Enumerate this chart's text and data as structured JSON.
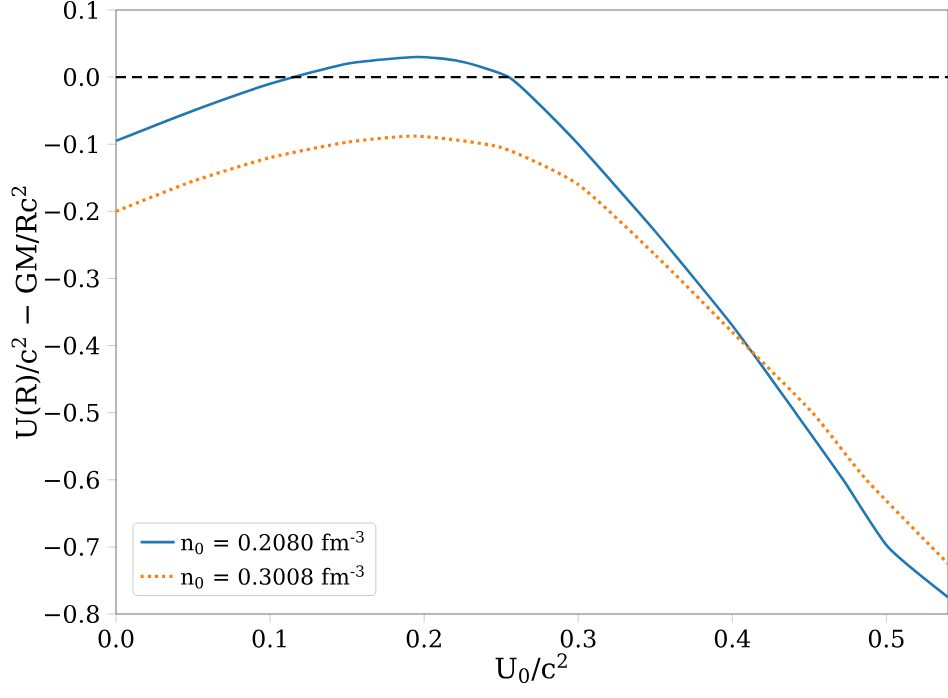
{
  "chart_data": {
    "type": "line",
    "xlabel": "U$_{0}$/c$^{2}$",
    "ylabel": "U(R)/c$^{2}$ − GM/Rc$^{2}$",
    "xlim": [
      0,
      0.54
    ],
    "ylim": [
      -0.8,
      0.1
    ],
    "xticks": [
      {
        "value": 0,
        "label": "0.0"
      },
      0.1,
      0.2,
      0.3,
      0.4,
      0.5
    ],
    "yticks": [
      {
        "value": 0.1,
        "label": "0.1"
      },
      {
        "value": 0,
        "label": "0.0"
      },
      {
        "value": -0.1,
        "label": "−0.1"
      },
      {
        "value": -0.2,
        "label": "−0.2"
      },
      {
        "value": -0.3,
        "label": "−0.3"
      },
      {
        "value": -0.4,
        "label": "−0.4"
      },
      {
        "value": -0.5,
        "label": "−0.5"
      },
      {
        "value": -0.6,
        "label": "−0.6"
      },
      {
        "value": -0.7,
        "label": "−0.7"
      },
      {
        "value": -0.8,
        "label": "−0.8"
      }
    ],
    "x": [
      0,
      0.05,
      0.1,
      0.15,
      0.195,
      0.22,
      0.24,
      0.255,
      0.27,
      0.3,
      0.35,
      0.4,
      0.441,
      0.472,
      0.501,
      0.54
    ],
    "series": [
      {
        "name": "n$_{0}$ = 0.2080 fm$^{-3}$",
        "color": "#1f77b4",
        "line_style": "solid",
        "values": [
          -0.095,
          -0.05,
          -0.01,
          0.02,
          0.03,
          0.025,
          0.013,
          0.0,
          -0.03,
          -0.1,
          -0.23,
          -0.37,
          -0.5,
          -0.6,
          -0.7,
          -0.775
        ]
      },
      {
        "name": "n$_{0}$ = 0.3008 fm$^{-3}$",
        "color": "#ff7f0e",
        "line_style": "dotted",
        "x": [
          0,
          0.05,
          0.1,
          0.15,
          0.195,
          0.25,
          0.3,
          0.35,
          0.4,
          0.452,
          0.487,
          0.54
        ],
        "values": [
          -0.2,
          -0.155,
          -0.12,
          -0.097,
          -0.088,
          -0.105,
          -0.16,
          -0.265,
          -0.38,
          -0.5,
          -0.6,
          -0.725
        ]
      }
    ],
    "ref_lines": [
      {
        "axis": "y",
        "value": 0,
        "color": "#000000",
        "line_style": "dashed"
      }
    ],
    "legend": "bottom left",
    "grid": false
  }
}
